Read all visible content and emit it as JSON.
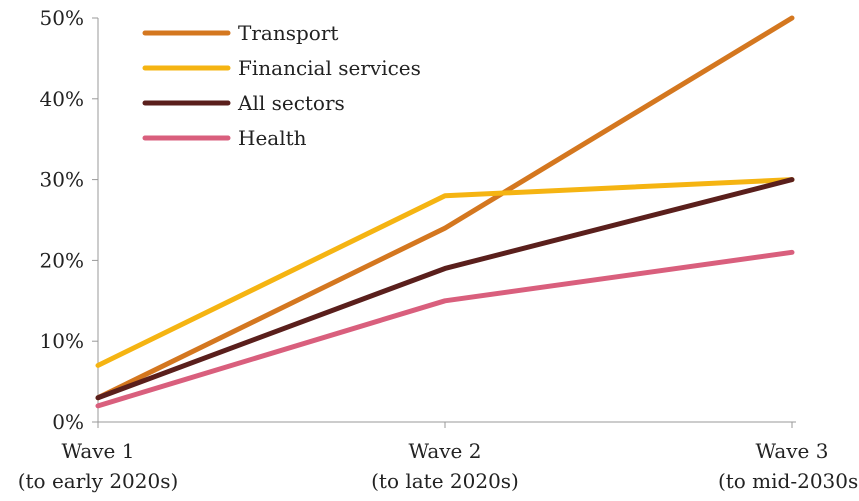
{
  "chart_data": {
    "type": "line",
    "categories": [
      [
        "Wave 1",
        "(to early 2020s)"
      ],
      [
        "Wave 2",
        "(to late 2020s)"
      ],
      [
        "Wave 3",
        "(to mid-2030s)"
      ]
    ],
    "ylim": [
      0,
      50
    ],
    "yticks": [
      0,
      10,
      20,
      30,
      40,
      50
    ],
    "ytick_labels": [
      "0%",
      "10%",
      "20%",
      "30%",
      "40%",
      "50%"
    ],
    "grid": false,
    "legend_position": "top-left",
    "series": [
      {
        "name": "Transport",
        "color": "#d4771f",
        "values": [
          3,
          24,
          50
        ]
      },
      {
        "name": "Financial services",
        "color": "#f5b412",
        "values": [
          7,
          28,
          30
        ]
      },
      {
        "name": "All sectors",
        "color": "#5a1f1c",
        "values": [
          3,
          19,
          30
        ]
      },
      {
        "name": "Health",
        "color": "#d95f7d",
        "values": [
          2,
          15,
          21
        ]
      }
    ]
  }
}
